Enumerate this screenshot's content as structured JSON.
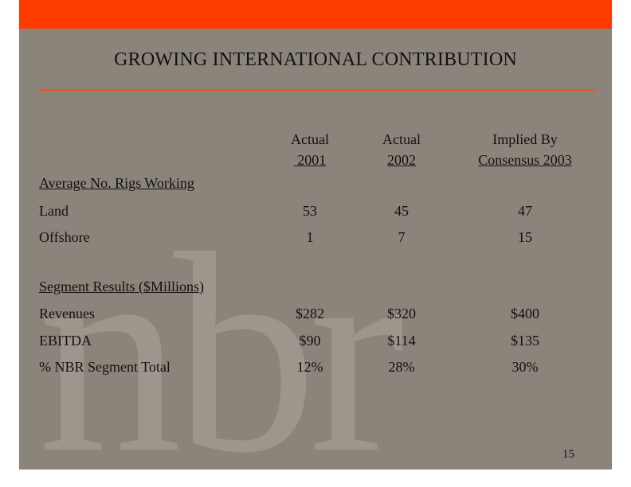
{
  "slide": {
    "title": "GROWING INTERNATIONAL CONTRIBUTION",
    "watermark": "nbr",
    "page_number": "15",
    "colors": {
      "topbar": "#ff3c00",
      "background": "#8b847b",
      "rule": "#d46235"
    }
  },
  "table": {
    "columns": [
      {
        "line1": "Actual",
        "line2": " 2001"
      },
      {
        "line1": "Actual",
        "line2": "2002"
      },
      {
        "line1": "Implied By",
        "line2": "Consensus 2003"
      }
    ],
    "sections": [
      {
        "title": "Average No. Rigs Working",
        "rows": [
          {
            "label": "Land",
            "values": [
              "53",
              "45",
              "47"
            ]
          },
          {
            "label": "Offshore",
            "values": [
              "1",
              "7",
              "15"
            ]
          }
        ]
      },
      {
        "title": "Segment Results ($Millions)",
        "rows": [
          {
            "label": "Revenues",
            "values": [
              "$282",
              "$320",
              "$400"
            ]
          },
          {
            "label": "EBITDA",
            "values": [
              "$90",
              "$114",
              "$135"
            ]
          },
          {
            "label": "% NBR Segment Total",
            "values": [
              "12%",
              "28%",
              "30%"
            ]
          }
        ]
      }
    ]
  }
}
